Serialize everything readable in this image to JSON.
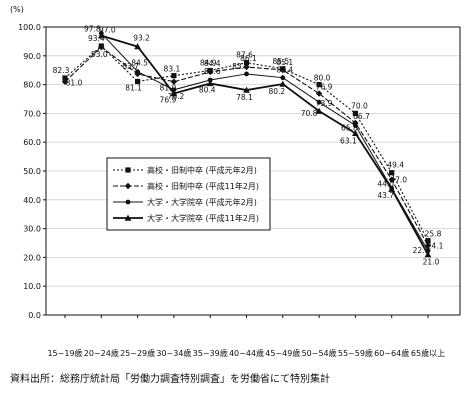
{
  "chart_data": {
    "type": "line",
    "title": "",
    "ylabel": "(%)",
    "xlabel": "",
    "ylim": [
      0,
      100
    ],
    "yticks": [
      "0.0",
      "10.0",
      "20.0",
      "30.0",
      "40.0",
      "50.0",
      "60.0",
      "70.0",
      "80.0",
      "90.0",
      "100.0"
    ],
    "categories": [
      "15~19歳",
      "20~24歳",
      "25~29歳",
      "30~34歳",
      "35~39歳",
      "40~44歳",
      "45~49歳",
      "50~54歳",
      "55~59歳",
      "60~64歳",
      "65歳以上"
    ],
    "grid": true,
    "legend_position": "center-left",
    "series": [
      {
        "name": "高校・旧制中卒 (平成元年2月)",
        "values": [
          82.3,
          93.4,
          81.1,
          83.1,
          84.9,
          87.6,
          85.5,
          80.0,
          70.0,
          49.4,
          25.8
        ]
      },
      {
        "name": "高校・旧制中卒 (平成11年2月)",
        "values": [
          81.0,
          93.0,
          83.7,
          81.0,
          84.4,
          86.1,
          85.1,
          76.9,
          66.7,
          47.0,
          24.1
        ]
      },
      {
        "name": "大学・大学院卒 (平成元年2月)",
        "values": [
          null,
          97.8,
          84.5,
          78.2,
          81.6,
          83.7,
          82.4,
          73.9,
          65.8,
          44.0,
          22.3
        ]
      },
      {
        "name": "大学・大学院卒 (平成11年2月)",
        "values": [
          null,
          97.0,
          93.2,
          76.9,
          80.4,
          78.1,
          80.2,
          70.8,
          63.1,
          43.7,
          21.0
        ]
      }
    ]
  },
  "source_note": "資料出所：総務庁統計局「労働力調査特別調査」を労働省にて特別集計"
}
